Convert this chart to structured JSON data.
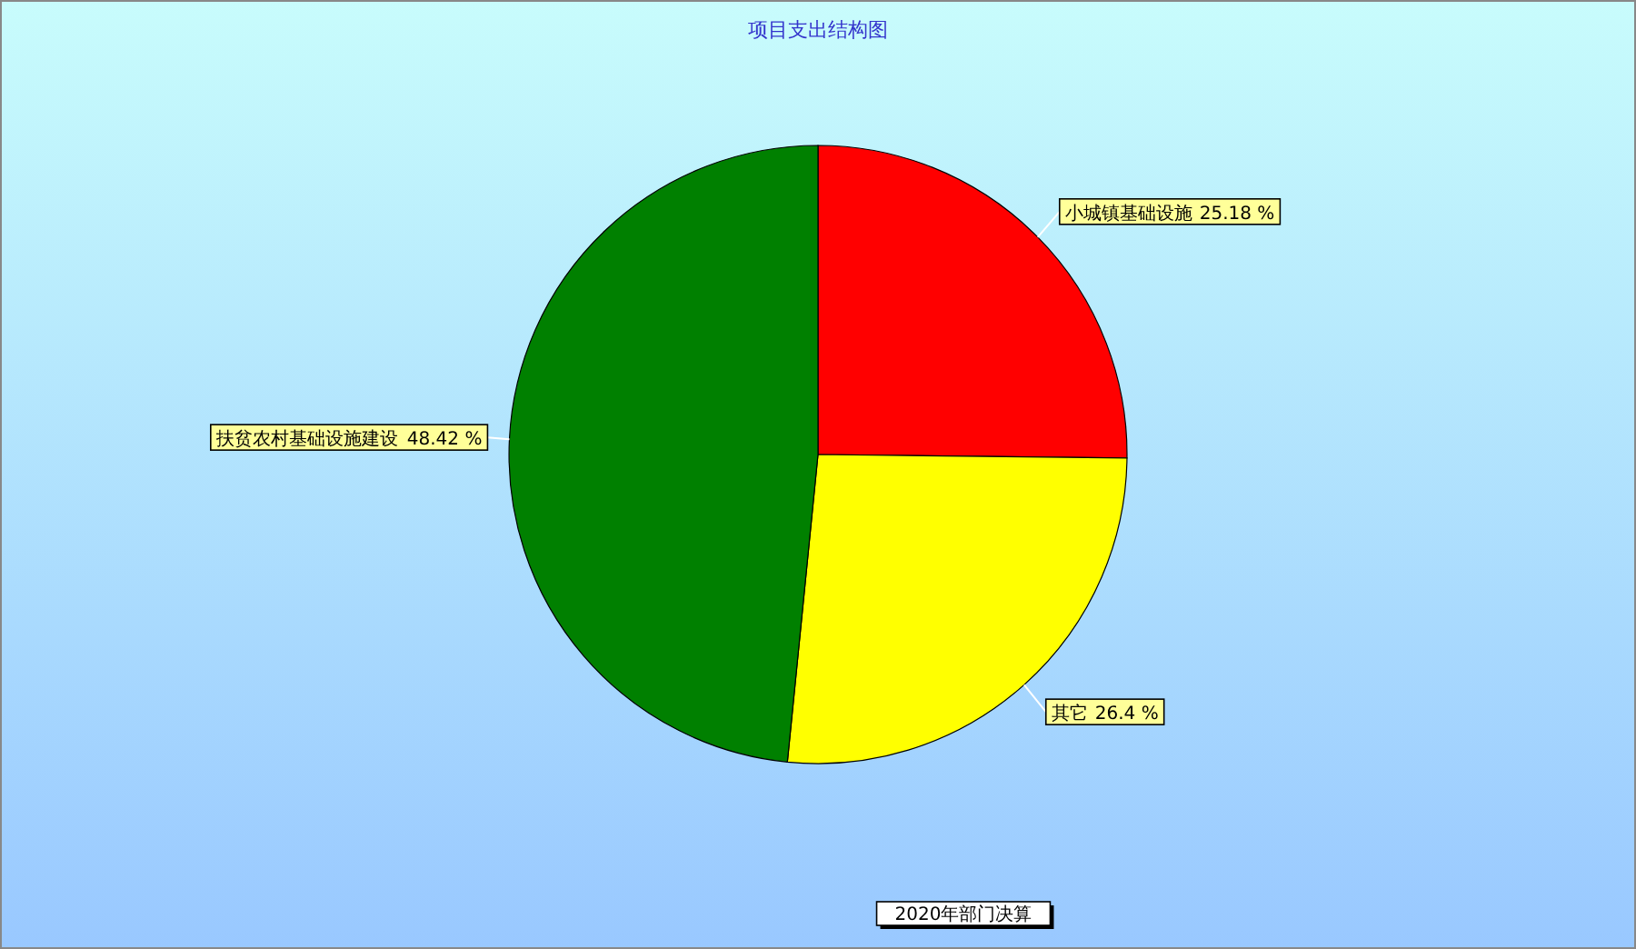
{
  "chart_data": {
    "type": "pie",
    "title": "项目支出结构图",
    "categories": [
      "小城镇基础设施",
      "其它",
      "扶贫农村基础设施建设"
    ],
    "values": [
      25.18,
      26.4,
      48.42
    ],
    "colors": [
      "#ff0000",
      "#ffff00",
      "#008000"
    ],
    "value_labels": [
      "25.18 %",
      "26.4 %",
      "48.42 %"
    ],
    "annotations": [
      "2020年部门决算"
    ]
  }
}
